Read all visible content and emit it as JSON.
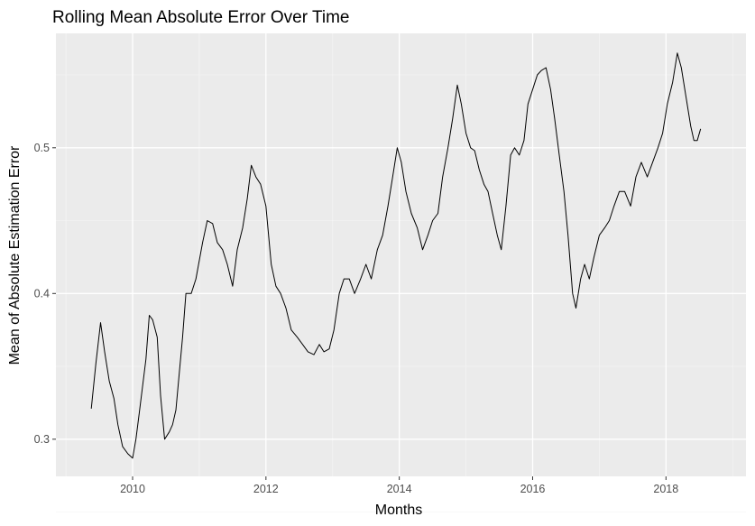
{
  "chart_data": {
    "type": "line",
    "title": "Rolling Mean Absolute Error Over Time",
    "xlabel": "Months",
    "ylabel": "Mean of Absolute Estimation Error",
    "xlim": [
      2008.85,
      2019.2
    ],
    "ylim": [
      0.2745,
      0.5785
    ],
    "x_ticks": [
      2010,
      2012,
      2014,
      2016,
      2018
    ],
    "x_tick_labels": [
      "2010",
      "2012",
      "2014",
      "2016",
      "2018"
    ],
    "y_ticks": [
      0.3,
      0.4,
      0.5
    ],
    "y_tick_labels": [
      "0.3",
      "0.4",
      "0.5"
    ],
    "grid": true,
    "legend": "none",
    "colors": {
      "panel": "#ebebeb",
      "grid_major": "#ffffff",
      "grid_minor": "#f5f5f5",
      "line": "#000000",
      "tick_label": "#4d4d4d"
    },
    "series": [
      {
        "x": [
          2009.38,
          2009.45,
          2009.52,
          2009.58,
          2009.65,
          2009.72,
          2009.78,
          2009.85,
          2009.93,
          2010.0,
          2010.05,
          2010.1,
          2010.2,
          2010.25,
          2010.3,
          2010.37,
          2010.42,
          2010.48,
          2010.55,
          2010.6,
          2010.65,
          2010.7,
          2010.75,
          2010.8,
          2010.88,
          2010.95,
          2011.05,
          2011.12,
          2011.2,
          2011.27,
          2011.35,
          2011.42,
          2011.5,
          2011.57,
          2011.65,
          2011.72,
          2011.78,
          2011.85,
          2011.92,
          2012.0,
          2012.08,
          2012.15,
          2012.22,
          2012.3,
          2012.38,
          2012.47,
          2012.55,
          2012.63,
          2012.72,
          2012.8,
          2012.87,
          2012.95,
          2013.02,
          2013.1,
          2013.17,
          2013.25,
          2013.33,
          2013.42,
          2013.5,
          2013.58,
          2013.67,
          2013.75,
          2013.83,
          2013.9,
          2013.97,
          2014.03,
          2014.1,
          2014.18,
          2014.27,
          2014.35,
          2014.43,
          2014.5,
          2014.58,
          2014.65,
          2014.73,
          2014.8,
          2014.87,
          2014.93,
          2015.0,
          2015.07,
          2015.13,
          2015.2,
          2015.27,
          2015.33,
          2015.4,
          2015.47,
          2015.53,
          2015.6,
          2015.67,
          2015.73,
          2015.8,
          2015.87,
          2015.93,
          2016.0,
          2016.07,
          2016.13,
          2016.2,
          2016.27,
          2016.33,
          2016.4,
          2016.47,
          2016.53,
          2016.6,
          2016.65,
          2016.72,
          2016.78,
          2016.85,
          2016.92,
          2017.0,
          2017.08,
          2017.15,
          2017.22,
          2017.3,
          2017.38,
          2017.47,
          2017.55,
          2017.63,
          2017.72,
          2017.8,
          2017.88,
          2017.95,
          2018.02,
          2018.1,
          2018.17,
          2018.23,
          2018.3,
          2018.37,
          2018.42,
          2018.47,
          2018.52
        ],
        "y": [
          0.321,
          0.352,
          0.38,
          0.36,
          0.34,
          0.328,
          0.31,
          0.295,
          0.29,
          0.287,
          0.3,
          0.318,
          0.355,
          0.385,
          0.382,
          0.37,
          0.33,
          0.3,
          0.305,
          0.31,
          0.32,
          0.345,
          0.37,
          0.4,
          0.4,
          0.41,
          0.435,
          0.45,
          0.448,
          0.435,
          0.43,
          0.42,
          0.405,
          0.43,
          0.445,
          0.465,
          0.488,
          0.48,
          0.475,
          0.46,
          0.42,
          0.405,
          0.4,
          0.39,
          0.375,
          0.37,
          0.365,
          0.36,
          0.358,
          0.365,
          0.36,
          0.362,
          0.375,
          0.4,
          0.41,
          0.41,
          0.4,
          0.41,
          0.42,
          0.41,
          0.43,
          0.44,
          0.46,
          0.48,
          0.5,
          0.49,
          0.47,
          0.455,
          0.445,
          0.43,
          0.44,
          0.45,
          0.455,
          0.48,
          0.5,
          0.52,
          0.543,
          0.53,
          0.51,
          0.5,
          0.498,
          0.485,
          0.475,
          0.47,
          0.455,
          0.44,
          0.43,
          0.46,
          0.495,
          0.5,
          0.495,
          0.505,
          0.53,
          0.54,
          0.55,
          0.553,
          0.555,
          0.54,
          0.52,
          0.495,
          0.47,
          0.44,
          0.4,
          0.39,
          0.41,
          0.42,
          0.41,
          0.425,
          0.44,
          0.445,
          0.45,
          0.46,
          0.47,
          0.47,
          0.46,
          0.48,
          0.49,
          0.48,
          0.49,
          0.5,
          0.51,
          0.53,
          0.545,
          0.565,
          0.555,
          0.535,
          0.515,
          0.505,
          0.505,
          0.513
        ]
      }
    ]
  }
}
